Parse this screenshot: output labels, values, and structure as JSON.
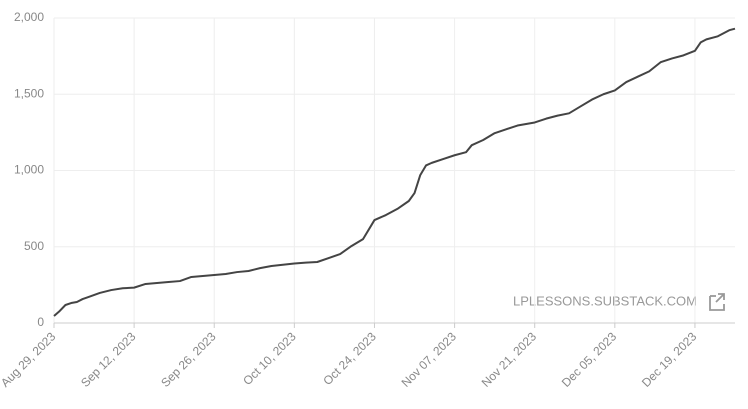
{
  "chart_data": {
    "type": "line",
    "x": [
      "2023-08-29",
      "2023-08-30",
      "2023-08-31",
      "2023-09-01",
      "2023-09-02",
      "2023-09-03",
      "2023-09-04",
      "2023-09-06",
      "2023-09-08",
      "2023-09-10",
      "2023-09-12",
      "2023-09-14",
      "2023-09-16",
      "2023-09-18",
      "2023-09-20",
      "2023-09-22",
      "2023-09-24",
      "2023-09-26",
      "2023-09-28",
      "2023-09-30",
      "2023-10-02",
      "2023-10-04",
      "2023-10-06",
      "2023-10-08",
      "2023-10-10",
      "2023-10-12",
      "2023-10-14",
      "2023-10-16",
      "2023-10-18",
      "2023-10-20",
      "2023-10-22",
      "2023-10-24",
      "2023-10-26",
      "2023-10-28",
      "2023-10-30",
      "2023-10-31",
      "2023-11-01",
      "2023-11-02",
      "2023-11-03",
      "2023-11-05",
      "2023-11-07",
      "2023-11-09",
      "2023-11-10",
      "2023-11-12",
      "2023-11-14",
      "2023-11-16",
      "2023-11-18",
      "2023-11-21",
      "2023-11-23",
      "2023-11-25",
      "2023-11-27",
      "2023-11-29",
      "2023-12-01",
      "2023-12-03",
      "2023-12-05",
      "2023-12-07",
      "2023-12-09",
      "2023-12-11",
      "2023-12-13",
      "2023-12-15",
      "2023-12-17",
      "2023-12-19",
      "2023-12-20",
      "2023-12-21",
      "2023-12-23",
      "2023-12-24",
      "2023-12-25",
      "2023-12-26"
    ],
    "values": [
      46,
      79,
      118,
      131,
      138,
      157,
      170,
      197,
      216,
      228,
      232,
      256,
      262,
      269,
      275,
      302,
      308,
      315,
      321,
      334,
      341,
      360,
      374,
      382,
      390,
      396,
      400,
      426,
      452,
      505,
      550,
      675,
      708,
      748,
      800,
      852,
      970,
      1033,
      1050,
      1075,
      1100,
      1120,
      1166,
      1200,
      1245,
      1270,
      1295,
      1315,
      1340,
      1360,
      1375,
      1420,
      1465,
      1500,
      1525,
      1580,
      1615,
      1650,
      1710,
      1735,
      1755,
      1785,
      1840,
      1860,
      1880,
      1900,
      1920,
      1930
    ],
    "color": "#444444",
    "xlim": [
      "2023-08-29",
      "2023-12-26"
    ],
    "xticks": [
      {
        "value": "2023-08-29",
        "label": "Aug 29, 2023"
      },
      {
        "value": "2023-09-12",
        "label": "Sep 12, 2023"
      },
      {
        "value": "2023-09-26",
        "label": "Sep 26, 2023"
      },
      {
        "value": "2023-10-10",
        "label": "Oct 10, 2023"
      },
      {
        "value": "2023-10-24",
        "label": "Oct 24, 2023"
      },
      {
        "value": "2023-11-07",
        "label": "Nov 07, 2023"
      },
      {
        "value": "2023-11-21",
        "label": "Nov 21, 2023"
      },
      {
        "value": "2023-12-05",
        "label": "Dec 05, 2023"
      },
      {
        "value": "2023-12-19",
        "label": "Dec 19, 2023"
      }
    ],
    "ylim": [
      0,
      2000
    ],
    "yticks": [
      0,
      500,
      {
        "value": 1000,
        "label": "1,000"
      },
      {
        "value": 1500,
        "label": "1,500"
      },
      {
        "value": 2000,
        "label": "2,000"
      }
    ],
    "grid": true,
    "watermark": "LPLESSONS.SUBSTACK.COM"
  }
}
